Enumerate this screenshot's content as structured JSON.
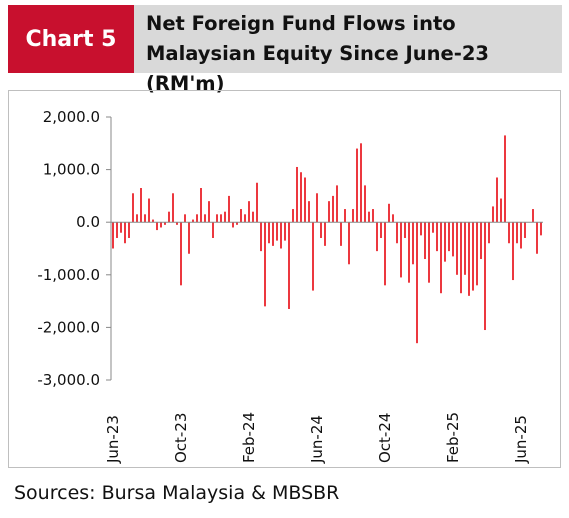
{
  "header": {
    "badge": "Chart 5",
    "title": "Net Foreign Fund Flows into Malaysian Equity Since June-23 (RM'm)"
  },
  "sources": "Sources: Bursa Malaysia & MBSBR",
  "colors": {
    "bar": "#e8131b",
    "badge": "#c8102e",
    "header_bg": "#d9d9d9"
  },
  "chart_data": {
    "type": "bar",
    "title": "Net Foreign Fund Flows into Malaysian Equity Since June-23 (RM'm)",
    "ylim": [
      -3000,
      2000
    ],
    "yticks": [
      2000,
      1000,
      0,
      -1000,
      -2000,
      -3000
    ],
    "ytick_labels": [
      "2,000.0",
      "1,000.0",
      "0.0",
      "-1,000.0",
      "-2,000.0",
      "-3,000.0"
    ],
    "xtick_labels": [
      "Jun-23",
      "Oct-23",
      "Feb-24",
      "Jun-24",
      "Oct-24",
      "Feb-25",
      "Jun-25"
    ],
    "xtick_positions": [
      0,
      17,
      34,
      51,
      68,
      85,
      102
    ],
    "grid": false,
    "legend": "none",
    "series": [
      {
        "values": [
          -500,
          -300,
          -200,
          -400,
          -300,
          550,
          150,
          650,
          150,
          450,
          50,
          -150,
          -100,
          -50,
          200,
          550,
          -50,
          -1200,
          150,
          -600,
          50,
          150,
          650,
          150,
          400,
          -300,
          150,
          150,
          200,
          500,
          -100,
          -50,
          250,
          150,
          400,
          200,
          750,
          -550,
          -1600,
          -400,
          -450,
          -350,
          -500,
          -350,
          -1650,
          250,
          1050,
          950,
          850,
          400,
          -1300,
          550,
          -300,
          -450,
          400,
          500,
          700,
          -450,
          250,
          -800,
          250,
          1400,
          1500,
          700,
          200,
          250,
          -550,
          -300,
          -1200,
          350,
          150,
          -400,
          -1050,
          -300,
          -1150,
          -800,
          -2300,
          -250,
          -700,
          -1150,
          -200,
          -550,
          -1350,
          -750,
          -550,
          -650,
          -1000,
          -1350,
          -1000,
          -1400,
          -1300,
          -1200,
          -700,
          -2050,
          -400,
          300,
          850,
          450,
          1650,
          -400,
          -1100,
          -400,
          -500,
          -300,
          0,
          250,
          -600,
          -250
        ]
      }
    ]
  }
}
